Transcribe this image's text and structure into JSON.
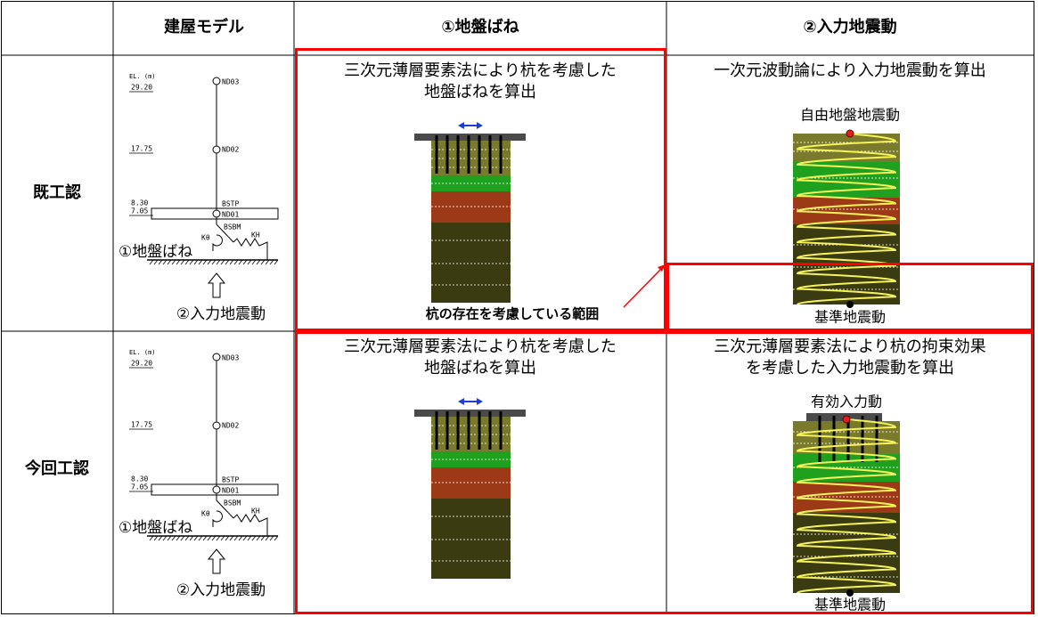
{
  "header": {
    "model": "建屋モデル",
    "spring": "①地盤ばね",
    "motion": "②入力地震動"
  },
  "rows": [
    {
      "label": "既工認",
      "model": {
        "el_unit": "EL. (m)",
        "levels": [
          "29.20",
          "17.75",
          "8.30",
          "7.05"
        ],
        "nodes": [
          "ND03",
          "ND02",
          "BSTP",
          "ND01",
          "BSBM"
        ],
        "springs": [
          "Kθ",
          "KH"
        ],
        "spring_label": "①地盤ばね",
        "motion_label": "②入力地震動"
      },
      "spring": {
        "text": [
          "三次元薄層要素法により杭を考慮した",
          "地盤ばねを算出"
        ],
        "note": "杭の存在を考慮している範囲"
      },
      "motion": {
        "text": [
          "一次元波動論により入力地震動を算出"
        ],
        "top": "自由地盤地震動",
        "bottom": "基準地震動"
      }
    },
    {
      "label": "今回工認",
      "model": {
        "el_unit": "EL. (m)",
        "levels": [
          "29.20",
          "17.75",
          "8.30",
          "7.05"
        ],
        "nodes": [
          "ND03",
          "ND02",
          "BSTP",
          "ND01",
          "BSBM"
        ],
        "springs": [
          "Kθ",
          "KH"
        ],
        "spring_label": "①地盤ばね",
        "motion_label": "②入力地震動"
      },
      "spring": {
        "text": [
          "三次元薄層要素法により杭を考慮した",
          "地盤ばねを算出"
        ]
      },
      "motion": {
        "text": [
          "三次元薄層要素法により杭の拘束効果",
          "を考慮した入力地震動を算出"
        ],
        "top": "有効入力動",
        "bottom": "基準地震動"
      }
    }
  ]
}
